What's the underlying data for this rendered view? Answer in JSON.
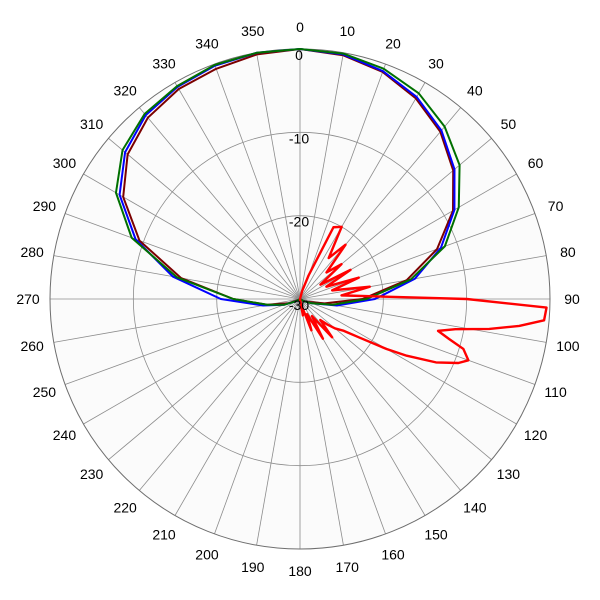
{
  "chart_data": {
    "type": "polar-line",
    "angle_unit": "degrees",
    "angle_direction": "clockwise",
    "zero_at": "top",
    "angle_ticks": [
      0,
      10,
      20,
      30,
      40,
      50,
      60,
      70,
      80,
      90,
      100,
      110,
      120,
      130,
      140,
      150,
      160,
      170,
      180,
      190,
      200,
      210,
      220,
      230,
      240,
      250,
      260,
      270,
      280,
      290,
      300,
      310,
      320,
      330,
      340,
      350
    ],
    "radial_range": [
      -30,
      0
    ],
    "radial_ticks": [
      0,
      -10,
      -20,
      -30
    ],
    "radial_tick_labels": [
      "0",
      "-10",
      "-20",
      "-30"
    ],
    "grid": true,
    "legend": "none",
    "series": [
      {
        "color": "#7b0000",
        "angles": [
          0,
          10,
          20,
          30,
          40,
          50,
          60,
          70,
          80,
          90,
          100,
          110,
          120,
          130,
          140,
          150,
          160,
          170,
          180,
          190,
          200,
          210,
          220,
          230,
          240,
          250,
          260,
          270,
          280,
          290,
          300,
          310,
          320,
          330,
          340,
          350
        ],
        "values": [
          0,
          -0.3,
          -1.0,
          -2.2,
          -3.8,
          -6.0,
          -8.8,
          -12.5,
          -17.0,
          -22.5,
          -27.0,
          -29.0,
          -29.5,
          -30,
          -30,
          -30,
          -30,
          -30,
          -30,
          -30,
          -30,
          -30,
          -30,
          -30,
          -29.8,
          -28.5,
          -26.0,
          -22.0,
          -15.5,
          -9.5,
          -5.5,
          -3.0,
          -1.6,
          -0.9,
          -0.6,
          -0.2
        ]
      },
      {
        "color": "#0000ff",
        "angles": [
          0,
          10,
          20,
          30,
          40,
          50,
          60,
          70,
          80,
          90,
          100,
          110,
          120,
          130,
          140,
          150,
          160,
          170,
          180,
          190,
          200,
          210,
          220,
          230,
          240,
          250,
          260,
          270,
          280,
          290,
          300,
          310,
          320,
          330,
          340,
          350
        ],
        "values": [
          0,
          -0.2,
          -0.9,
          -2.0,
          -3.6,
          -5.8,
          -8.6,
          -12.0,
          -16.0,
          -21.0,
          -25.5,
          -28.5,
          -29.5,
          -30,
          -30,
          -30,
          -30,
          -30,
          -30,
          -30,
          -30,
          -30,
          -30,
          -30,
          -29.5,
          -28.0,
          -25.5,
          -20.5,
          -14.5,
          -9.0,
          -5.0,
          -2.6,
          -1.2,
          -0.6,
          -0.2,
          0
        ]
      },
      {
        "color": "#007000",
        "angles": [
          0,
          10,
          20,
          30,
          40,
          50,
          60,
          70,
          80,
          90,
          100,
          110,
          120,
          130,
          140,
          150,
          160,
          170,
          180,
          190,
          200,
          210,
          220,
          230,
          240,
          250,
          260,
          270,
          280,
          290,
          300,
          310,
          320,
          330,
          340,
          350
        ],
        "values": [
          0,
          -0.1,
          -0.6,
          -1.5,
          -3.0,
          -5.0,
          -8.0,
          -11.5,
          -16.5,
          -22.0,
          -26.0,
          -28.5,
          -29.5,
          -30,
          -30,
          -30,
          -30,
          -30,
          -30,
          -30,
          -30,
          -30,
          -30,
          -30,
          -29.5,
          -28.0,
          -26.0,
          -22.0,
          -15.0,
          -8.5,
          -4.5,
          -2.2,
          -1.0,
          -0.5,
          -0.1,
          0
        ]
      },
      {
        "color": "#ff0000",
        "angles": [
          0,
          5,
          10,
          15,
          20,
          25,
          30,
          35,
          40,
          45,
          50,
          55,
          60,
          65,
          70,
          75,
          80,
          85,
          90,
          92,
          95,
          97,
          99,
          101,
          103,
          105,
          107,
          110,
          112,
          115,
          118,
          120,
          123,
          126,
          130,
          133,
          136,
          140,
          145,
          150,
          155,
          160,
          165,
          170,
          175,
          180,
          190,
          200,
          210,
          220,
          230,
          240,
          250,
          260,
          270,
          280,
          290,
          300,
          310,
          320,
          330,
          340,
          350,
          355
        ],
        "values": [
          -30,
          -30,
          -30,
          -29,
          -27,
          -20.5,
          -20,
          -24,
          -21.5,
          -25.5,
          -23.5,
          -27,
          -23,
          -26.5,
          -22.5,
          -26,
          -21.5,
          -25,
          -10,
          -0.4,
          -0.6,
          -3.5,
          -7,
          -11,
          -13,
          -11.5,
          -9.5,
          -8.5,
          -9.5,
          -12,
          -15.5,
          -18,
          -21.5,
          -23.5,
          -24.5,
          -25.5,
          -26.5,
          -24,
          -27.5,
          -24.5,
          -28,
          -26,
          -29,
          -28,
          -30,
          -30,
          -30,
          -30,
          -30,
          -30,
          -30,
          -30,
          -30,
          -30,
          -30,
          -30,
          -30,
          -30,
          -30,
          -30,
          -30,
          -30,
          -30,
          -30
        ]
      }
    ]
  }
}
